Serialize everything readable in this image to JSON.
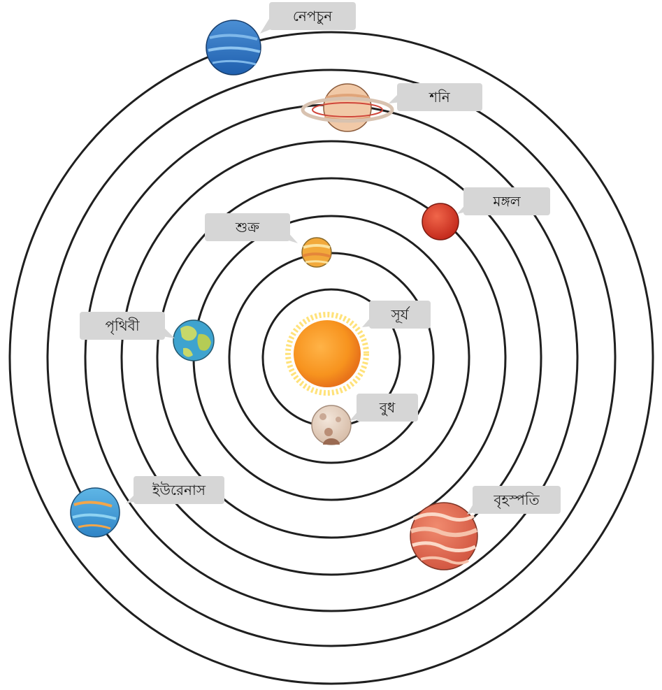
{
  "labels": {
    "sun": "সূর্য",
    "mercury": "বুধ",
    "venus": "শুক্র",
    "earth": "পৃথিবী",
    "mars": "মঙ্গল",
    "jupiter": "বৃহস্পতি",
    "saturn": "শনি",
    "uranus": "ইউরেনাস",
    "neptune": "নেপচুন"
  },
  "colors": {
    "orbit": "#1f1f1f",
    "bubble": "#d6d6d6",
    "sun": "#f7931e",
    "sun_rays": "#ffe27a"
  }
}
